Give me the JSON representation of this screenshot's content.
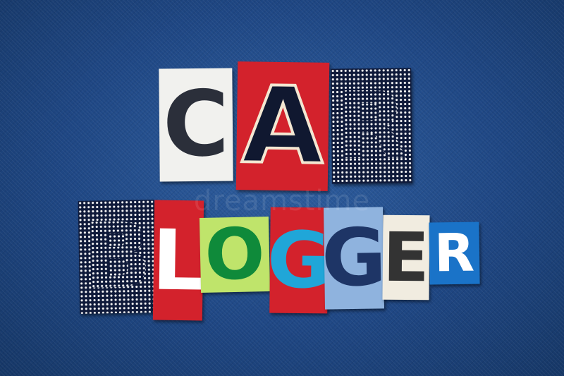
{
  "word1": {
    "text": "CAR",
    "letters": [
      {
        "char": "C",
        "bg": "#f1f1ee",
        "fg": "#2b2f3a"
      },
      {
        "char": "A",
        "bg": "#d3222c",
        "fg": "#101830"
      },
      {
        "char": "R",
        "bg": "#0f1a3a",
        "fg": "#f2f2f2"
      }
    ]
  },
  "word2": {
    "text": "BLOGGER",
    "letters": [
      {
        "char": "B",
        "bg": "#0f1a3a",
        "fg": "#f2f2f2"
      },
      {
        "char": "L",
        "bg": "#d3222c",
        "fg": "#ffffff"
      },
      {
        "char": "O",
        "bg": "#bfe46b",
        "fg": "#0f8a3a"
      },
      {
        "char": "G",
        "bg": "#d3222c",
        "fg": "#20a6d8"
      },
      {
        "char": "G",
        "bg": "#8fb3de",
        "fg": "#1e3566"
      },
      {
        "char": "E",
        "bg": "#f1ece0",
        "fg": "#333333"
      },
      {
        "char": "R",
        "bg": "#1a73c8",
        "fg": "#ffffff"
      }
    ]
  },
  "watermark": "dreamstime",
  "background_color": "#24508c"
}
